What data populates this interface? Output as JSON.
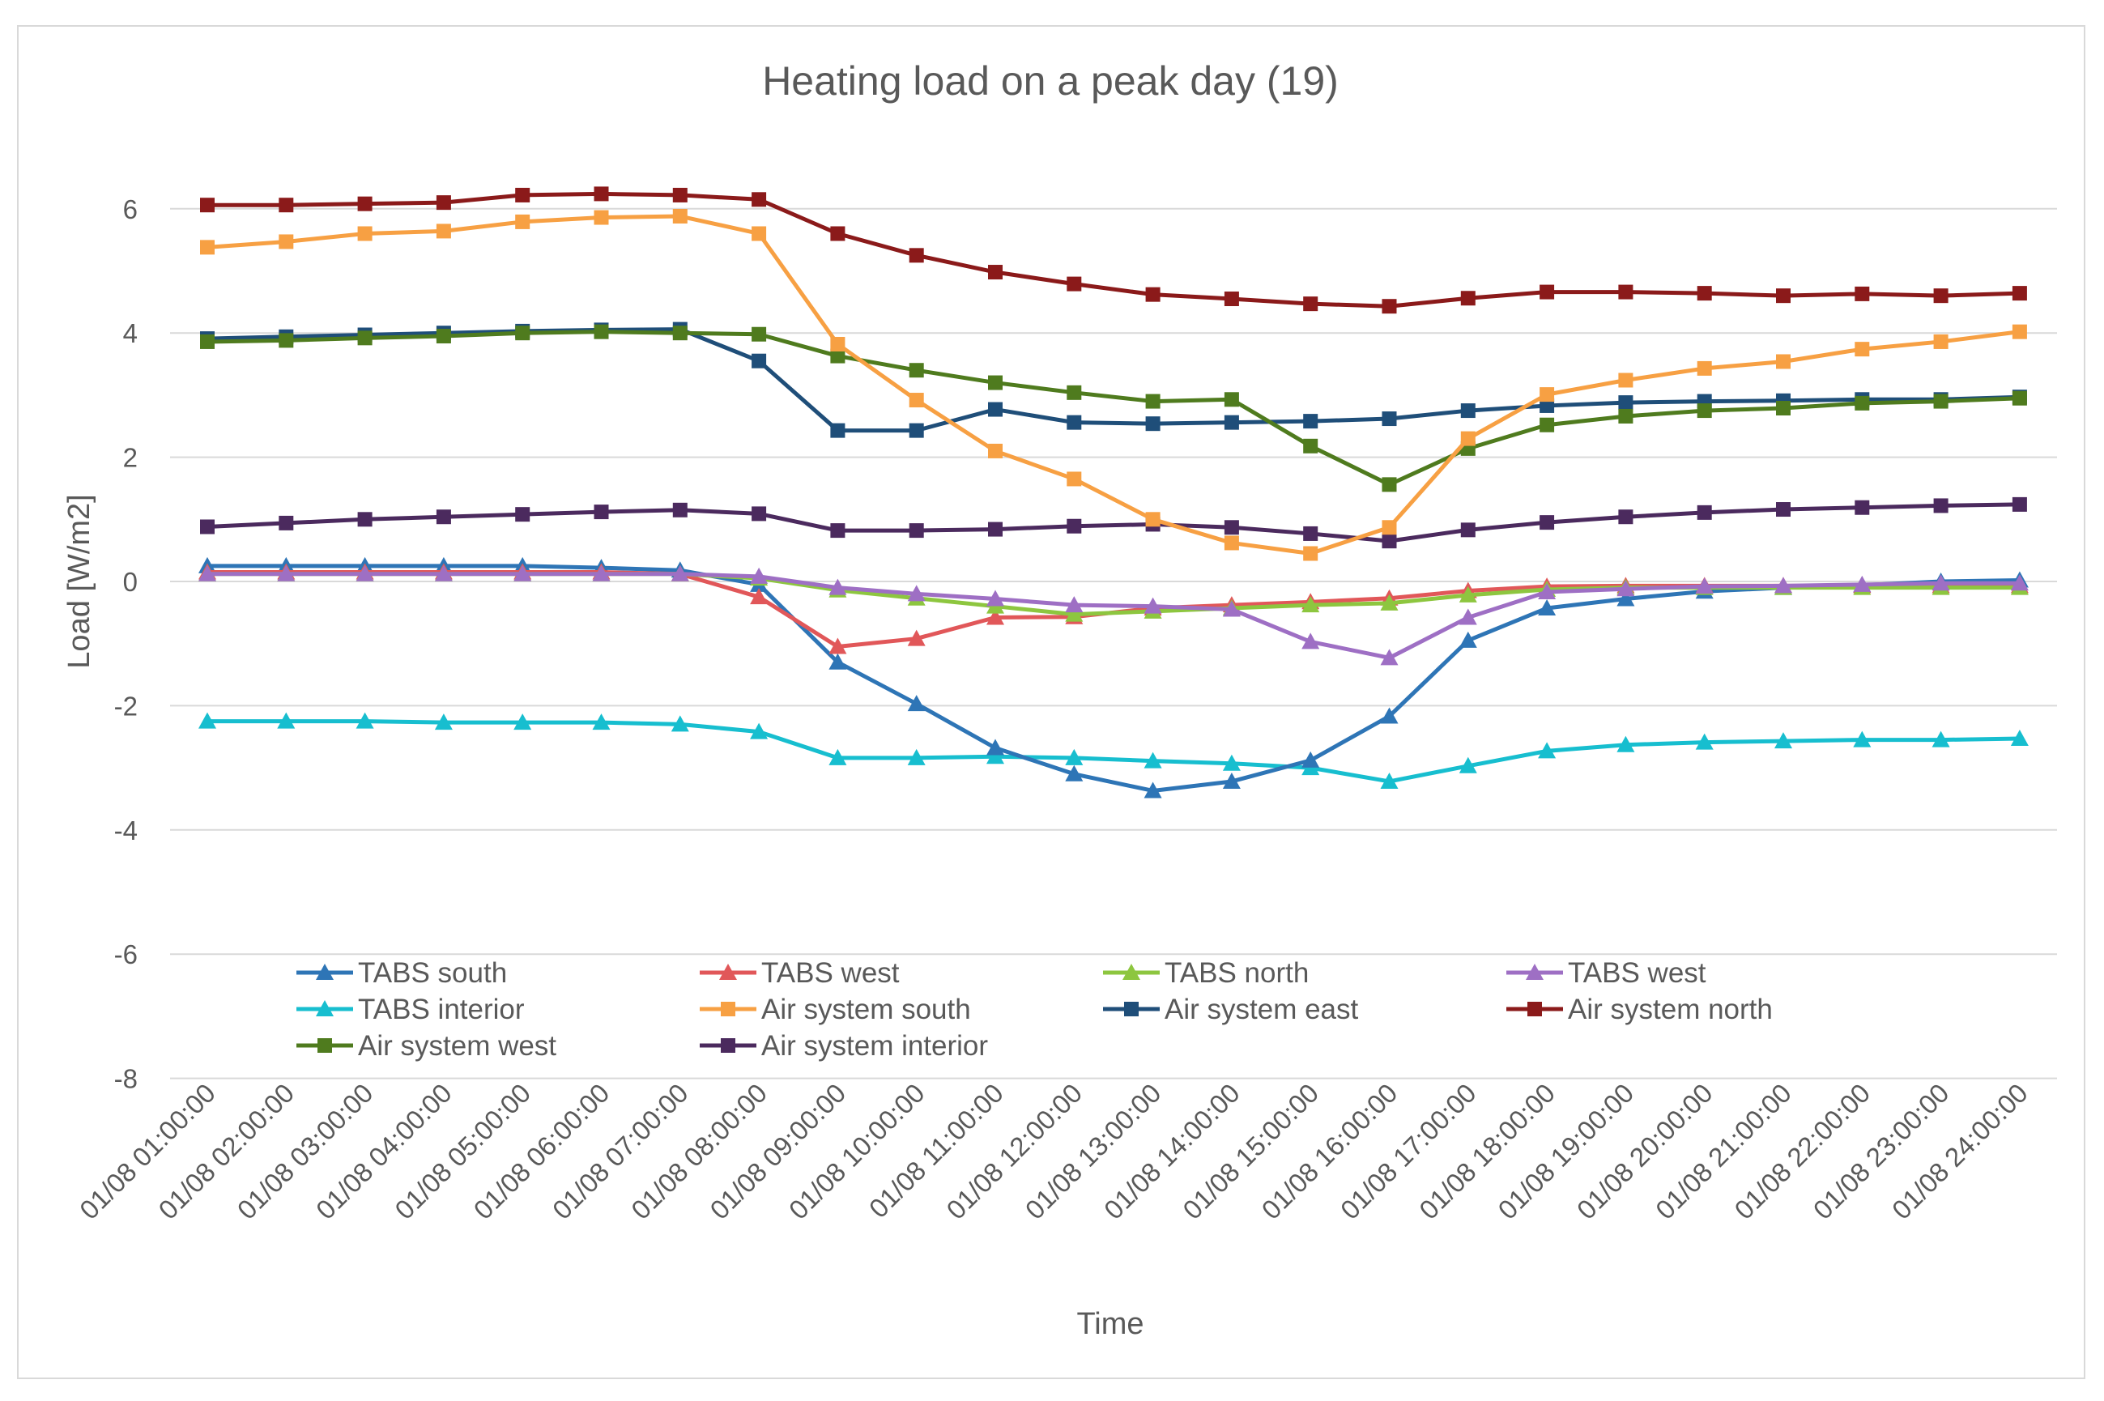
{
  "chart_data": {
    "type": "line",
    "title": "Heating load on a peak day (19)",
    "xlabel": "Time",
    "ylabel": "Load [W/m2]",
    "ylim": [
      -8,
      7
    ],
    "yticks": [
      -8,
      -6,
      -4,
      -2,
      0,
      2,
      4,
      6
    ],
    "grid": true,
    "legend_position": "bottom-inside",
    "categories": [
      "01/08  01:00:00",
      "01/08  02:00:00",
      "01/08  03:00:00",
      "01/08  04:00:00",
      "01/08  05:00:00",
      "01/08  06:00:00",
      "01/08  07:00:00",
      "01/08  08:00:00",
      "01/08  09:00:00",
      "01/08  10:00:00",
      "01/08  11:00:00",
      "01/08  12:00:00",
      "01/08  13:00:00",
      "01/08  14:00:00",
      "01/08  15:00:00",
      "01/08  16:00:00",
      "01/08  17:00:00",
      "01/08  18:00:00",
      "01/08  19:00:00",
      "01/08  20:00:00",
      "01/08  21:00:00",
      "01/08  22:00:00",
      "01/08  23:00:00",
      "01/08  24:00:00"
    ],
    "series": [
      {
        "name": "TABS south",
        "color": "#2e75b6",
        "marker": "triangle",
        "values": [
          0.25,
          0.25,
          0.25,
          0.25,
          0.25,
          0.22,
          0.18,
          -0.05,
          -1.3,
          -1.97,
          -2.68,
          -3.1,
          -3.37,
          -3.22,
          -2.88,
          -2.17,
          -0.95,
          -0.43,
          -0.28,
          -0.16,
          -0.1,
          -0.06,
          0.0,
          0.02
        ]
      },
      {
        "name": "TABS west",
        "color": "#e15759",
        "marker": "triangle",
        "values": [
          0.15,
          0.15,
          0.15,
          0.15,
          0.15,
          0.15,
          0.12,
          -0.25,
          -1.05,
          -0.92,
          -0.58,
          -0.57,
          -0.43,
          -0.38,
          -0.33,
          -0.27,
          -0.15,
          -0.08,
          -0.07,
          -0.07,
          -0.07,
          -0.07,
          -0.07,
          -0.07
        ]
      },
      {
        "name": "TABS north",
        "color": "#8dc63f",
        "marker": "triangle",
        "values": [
          0.12,
          0.12,
          0.12,
          0.12,
          0.12,
          0.12,
          0.12,
          0.05,
          -0.14,
          -0.27,
          -0.4,
          -0.53,
          -0.48,
          -0.43,
          -0.38,
          -0.35,
          -0.22,
          -0.13,
          -0.1,
          -0.1,
          -0.1,
          -0.1,
          -0.1,
          -0.1
        ]
      },
      {
        "name": "TABS west",
        "color": "#9e6fc4",
        "marker": "triangle",
        "values": [
          0.12,
          0.12,
          0.12,
          0.12,
          0.12,
          0.12,
          0.12,
          0.08,
          -0.1,
          -0.2,
          -0.28,
          -0.38,
          -0.4,
          -0.45,
          -0.97,
          -1.23,
          -0.58,
          -0.17,
          -0.12,
          -0.08,
          -0.07,
          -0.05,
          -0.03,
          -0.03
        ]
      },
      {
        "name": "TABS interior",
        "color": "#17becf",
        "marker": "triangle",
        "values": [
          -2.25,
          -2.25,
          -2.25,
          -2.27,
          -2.27,
          -2.27,
          -2.3,
          -2.42,
          -2.84,
          -2.84,
          -2.82,
          -2.84,
          -2.89,
          -2.93,
          -3.0,
          -3.22,
          -2.97,
          -2.73,
          -2.63,
          -2.59,
          -2.57,
          -2.55,
          -2.55,
          -2.53
        ]
      },
      {
        "name": "Air system south",
        "color": "#f7a043",
        "marker": "square",
        "values": [
          5.38,
          5.47,
          5.6,
          5.64,
          5.79,
          5.86,
          5.88,
          5.6,
          3.82,
          2.92,
          2.1,
          1.65,
          1.0,
          0.62,
          0.45,
          0.87,
          2.3,
          3.01,
          3.24,
          3.43,
          3.54,
          3.74,
          3.86,
          4.02
        ]
      },
      {
        "name": "Air system east",
        "color": "#1f4e79",
        "marker": "square",
        "values": [
          3.91,
          3.94,
          3.97,
          4.0,
          4.03,
          4.05,
          4.06,
          3.55,
          2.43,
          2.43,
          2.77,
          2.56,
          2.54,
          2.56,
          2.58,
          2.62,
          2.75,
          2.83,
          2.88,
          2.9,
          2.91,
          2.93,
          2.93,
          2.97
        ]
      },
      {
        "name": "Air system north",
        "color": "#8b1a1a",
        "marker": "square",
        "values": [
          6.06,
          6.06,
          6.08,
          6.1,
          6.22,
          6.24,
          6.22,
          6.15,
          5.6,
          5.25,
          4.98,
          4.79,
          4.62,
          4.55,
          4.47,
          4.43,
          4.56,
          4.66,
          4.66,
          4.64,
          4.6,
          4.63,
          4.6,
          4.64
        ]
      },
      {
        "name": "Air system west",
        "color": "#4f7b1e",
        "marker": "square",
        "values": [
          3.86,
          3.88,
          3.92,
          3.95,
          4.0,
          4.02,
          4.0,
          3.98,
          3.63,
          3.4,
          3.2,
          3.04,
          2.9,
          2.93,
          2.18,
          1.56,
          2.14,
          2.52,
          2.66,
          2.75,
          2.79,
          2.87,
          2.9,
          2.95
        ]
      },
      {
        "name": "Air system interior",
        "color": "#4b2a5e",
        "marker": "square",
        "values": [
          0.88,
          0.94,
          1.0,
          1.04,
          1.08,
          1.12,
          1.15,
          1.09,
          0.82,
          0.82,
          0.84,
          0.89,
          0.92,
          0.87,
          0.77,
          0.65,
          0.83,
          0.95,
          1.04,
          1.11,
          1.16,
          1.19,
          1.22,
          1.24
        ]
      }
    ]
  }
}
